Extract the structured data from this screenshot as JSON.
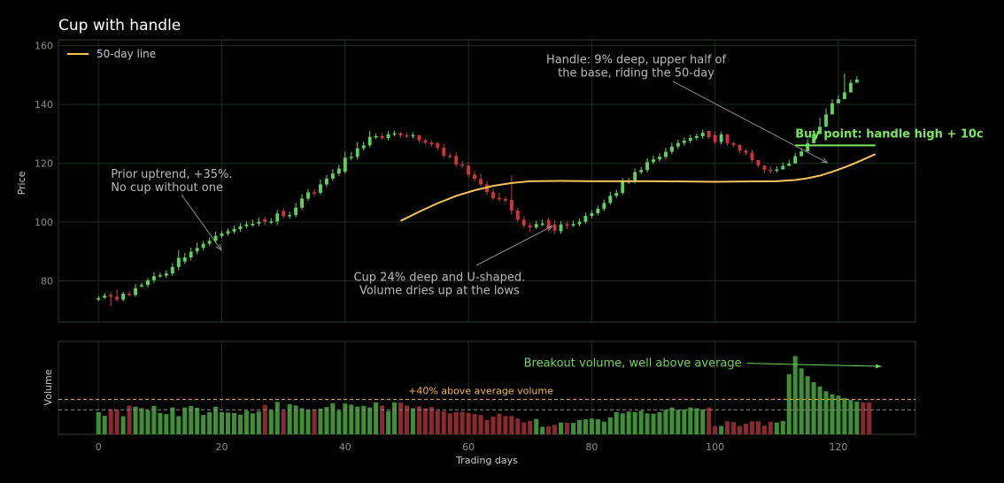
{
  "chart_data": [
    {
      "type": "candlestick",
      "title": "Cup with handle",
      "xlabel": "",
      "ylabel": "Price",
      "xlim": [
        -6.5,
        132.5
      ],
      "ylim": [
        66,
        162
      ],
      "xticks": [
        0,
        20,
        40,
        60,
        80,
        100,
        120
      ],
      "yticks": [
        80,
        100,
        120,
        140,
        160
      ],
      "grid": true,
      "legend_position": "top-left",
      "colors": {
        "up": "#5fd35f",
        "down": "#d2343e",
        "ma": "#f7c35b",
        "buy": "#7be85c",
        "annotation": "#b9b9b9",
        "arrow": "#8a8a8a"
      },
      "ohlc_close": [
        74.1,
        75.0,
        74.6,
        73.6,
        75.6,
        75.2,
        77.5,
        78.6,
        80.2,
        81.6,
        81.9,
        82.5,
        84.7,
        87.8,
        88.0,
        89.9,
        91.2,
        92.6,
        93.6,
        95.3,
        96.1,
        96.9,
        97.6,
        98.6,
        99.2,
        99.4,
        100.1,
        100.1,
        100.2,
        102.9,
        102.0,
        102.4,
        104.9,
        108.0,
        110.1,
        110.0,
        112.8,
        114.8,
        116.5,
        118.2,
        121.9,
        122.2,
        125.1,
        126.1,
        129.0,
        129.2,
        128.6,
        129.9,
        130.2,
        129.5,
        129.2,
        129.6,
        127.8,
        127.0,
        126.4,
        125.3,
        122.6,
        122.5,
        119.6,
        119.2,
        116.1,
        114.7,
        112.8,
        110.2,
        108.2,
        107.8,
        107.5,
        103.9,
        100.8,
        98.9,
        98.2,
        99.3,
        99.5,
        97.9,
        97.1,
        99.2,
        99.1,
        99.3,
        100.1,
        102.1,
        103.0,
        104.5,
        106.5,
        108.9,
        109.9,
        113.8,
        113.9,
        117.0,
        117.7,
        120.4,
        121.3,
        122.2,
        123.9,
        125.7,
        126.9,
        127.7,
        128.6,
        129.2,
        130.4,
        128.9,
        127.2,
        129.8,
        126.8,
        126.3,
        124.3,
        123.6,
        121.1,
        119.2,
        117.8,
        117.7,
        117.9,
        119.1,
        119.9,
        122.4,
        124.0,
        126.8,
        129.9,
        132.4,
        136.6,
        140.4,
        141.8,
        144.1,
        147.4,
        148.5
      ],
      "ohlc_open": [
        73.6,
        74.3,
        75.2,
        74.6,
        73.6,
        75.6,
        75.2,
        78.2,
        78.6,
        80.2,
        81.6,
        81.8,
        82.5,
        84.7,
        86.5,
        88.0,
        90.0,
        91.2,
        92.6,
        93.6,
        95.3,
        96.1,
        96.8,
        97.6,
        98.6,
        99.2,
        99.5,
        101.0,
        100.1,
        100.2,
        103.8,
        102.0,
        102.4,
        104.9,
        108.0,
        110.1,
        110.0,
        112.8,
        114.8,
        116.5,
        117.2,
        121.9,
        122.2,
        125.1,
        126.1,
        129.1,
        129.2,
        128.6,
        129.9,
        130.2,
        129.5,
        129.2,
        129.6,
        127.8,
        127.0,
        126.8,
        125.3,
        122.6,
        122.5,
        119.6,
        119.2,
        116.1,
        114.7,
        112.8,
        110.2,
        108.2,
        107.8,
        107.5,
        103.9,
        100.8,
        98.9,
        98.2,
        99.3,
        100.7,
        99.2,
        96.9,
        99.2,
        99.1,
        99.3,
        100.1,
        102.1,
        103.0,
        104.5,
        106.5,
        108.9,
        109.9,
        113.8,
        113.9,
        117.0,
        117.7,
        120.4,
        121.3,
        122.2,
        123.9,
        125.7,
        126.9,
        127.7,
        128.6,
        129.2,
        131.0,
        129.6,
        127.2,
        129.8,
        126.8,
        126.3,
        124.3,
        123.6,
        121.1,
        119.2,
        117.8,
        117.7,
        117.9,
        119.1,
        119.9,
        122.4,
        124.0,
        126.8,
        129.9,
        132.4,
        136.6,
        140.4,
        141.8,
        144.1,
        147.4
      ],
      "ohlc_high": [
        74.9,
        75.9,
        76.0,
        77.0,
        76.3,
        76.6,
        78.9,
        79.4,
        81.0,
        83.0,
        82.8,
        83.6,
        86.0,
        90.5,
        89.5,
        91.3,
        93.0,
        93.6,
        94.8,
        96.7,
        97.1,
        97.8,
        98.8,
        99.6,
        100.3,
        100.8,
        101.6,
        101.9,
        101.3,
        104.1,
        104.6,
        103.5,
        106.5,
        109.5,
        111.2,
        111.3,
        114.5,
        116.0,
        118.0,
        119.5,
        124.0,
        123.9,
        127.3,
        127.4,
        131.0,
        130.2,
        130.2,
        131.0,
        131.1,
        130.6,
        130.2,
        130.6,
        129.0,
        128.3,
        127.8,
        127.3,
        126.5,
        123.6,
        123.7,
        120.8,
        120.4,
        117.4,
        116.5,
        114.0,
        111.4,
        110.1,
        108.6,
        116.0,
        104.8,
        102.0,
        99.8,
        100.5,
        100.8,
        101.6,
        100.5,
        100.3,
        100.2,
        100.4,
        101.1,
        103.2,
        104.1,
        105.6,
        107.6,
        110.3,
        111.0,
        115.0,
        115.1,
        118.2,
        118.8,
        121.7,
        122.6,
        123.4,
        125.2,
        127.0,
        128.0,
        128.8,
        129.7,
        130.1,
        131.5,
        130.4,
        130.8,
        130.7,
        130.0,
        127.4,
        125.3,
        124.8,
        124.4,
        120.6,
        119.0,
        119.0,
        119.0,
        120.3,
        121.2,
        123.6,
        125.2,
        128.2,
        131.3,
        135.5,
        138.7,
        141.8,
        143.2,
        150.5,
        148.5,
        149.6
      ],
      "ohlc_low": [
        73.1,
        73.8,
        71.5,
        73.0,
        73.1,
        74.8,
        74.6,
        77.7,
        77.8,
        79.3,
        81.0,
        81.0,
        81.7,
        83.6,
        85.7,
        87.0,
        89.0,
        90.4,
        91.9,
        92.8,
        94.5,
        95.3,
        96.0,
        96.7,
        97.8,
        98.4,
        98.6,
        99.0,
        99.4,
        99.0,
        101.2,
        101.1,
        101.7,
        104.1,
        107.2,
        108.7,
        109.2,
        112.0,
        114.0,
        115.7,
        116.5,
        121.1,
        121.2,
        124.3,
        125.4,
        128.3,
        128.0,
        127.8,
        129.1,
        128.8,
        128.7,
        128.4,
        127.0,
        126.3,
        125.6,
        124.5,
        121.8,
        121.7,
        118.8,
        118.4,
        115.3,
        113.9,
        112.0,
        109.4,
        107.4,
        107.0,
        106.8,
        102.5,
        100.0,
        98.0,
        96.7,
        97.6,
        98.5,
        97.0,
        96.0,
        96.0,
        97.6,
        98.3,
        98.5,
        99.4,
        101.3,
        102.3,
        103.7,
        105.8,
        108.2,
        109.2,
        113.0,
        113.1,
        116.2,
        116.8,
        119.6,
        120.5,
        121.4,
        123.1,
        124.8,
        126.0,
        126.9,
        127.8,
        128.4,
        128.3,
        126.4,
        126.5,
        126.0,
        125.5,
        123.5,
        122.8,
        120.3,
        118.5,
        116.6,
        116.5,
        116.9,
        118.4,
        119.2,
        121.7,
        123.3,
        126.1,
        129.2,
        131.7,
        135.9,
        139.7,
        141.1,
        143.4,
        146.7,
        147.8
      ],
      "ma_series": {
        "name": "50-day line",
        "x": [
          49,
          52,
          55,
          58,
          61,
          64,
          67,
          70,
          75,
          80,
          85,
          90,
          95,
          100,
          105,
          110,
          113,
          115,
          117,
          119,
          121,
          123,
          126
        ],
        "values": [
          100.4,
          103.5,
          106.4,
          108.9,
          110.8,
          112.3,
          113.3,
          113.9,
          114.0,
          113.9,
          113.9,
          113.9,
          113.8,
          113.7,
          113.8,
          113.9,
          114.3,
          114.9,
          115.8,
          117.1,
          118.6,
          120.3,
          123.1
        ]
      },
      "annotations": [
        {
          "text": "Prior uptrend, +35%.",
          "text2": "No cup without one",
          "tx": 2,
          "ty": 115,
          "ax": 19.9,
          "ay": 90.5
        },
        {
          "text": "Cup 24% deep and U-shaped.",
          "text2": "Volume dries up at the lows",
          "tx": 55.3,
          "ty": 80,
          "ax": 73.6,
          "ay": 98.6
        },
        {
          "text": "Handle: 9% deep, upper half of",
          "text2": "the base, riding the 50-day",
          "tx": 87.2,
          "ty": 154,
          "ax": 118.2,
          "ay": 120.2
        }
      ],
      "buy_point": {
        "label": "Buy point: handle high + 10c",
        "value": 130.0,
        "x_start": 113,
        "x_end": 126
      }
    },
    {
      "type": "bar",
      "xlabel": "Trading days",
      "ylabel": "Volume",
      "xlim": [
        -6.5,
        132.5
      ],
      "ylim": [
        0,
        2.35
      ],
      "xticks": [
        0,
        20,
        40,
        60,
        80,
        100,
        120
      ],
      "colors": {
        "up": "#3f8f36",
        "down": "#8b2a2e",
        "average": "#8a8a8a",
        "threshold": "#f0b74a",
        "annotation": "#72d45a"
      },
      "average_volume": 0.62,
      "threshold_volume": 0.88,
      "threshold_label": "+40% above average volume",
      "annotation": {
        "text": "Breakout volume, well above average",
        "tx": 100,
        "ty": 1.82,
        "ax": 127,
        "ay": 1.72
      },
      "values": [
        0.56,
        0.47,
        0.63,
        0.62,
        0.46,
        0.73,
        0.7,
        0.66,
        0.61,
        0.72,
        0.54,
        0.51,
        0.68,
        0.46,
        0.68,
        0.72,
        0.67,
        0.49,
        0.56,
        0.7,
        0.56,
        0.55,
        0.54,
        0.5,
        0.6,
        0.53,
        0.58,
        0.75,
        0.61,
        0.82,
        0.6,
        0.76,
        0.73,
        0.66,
        0.62,
        0.63,
        0.65,
        0.69,
        0.79,
        0.6,
        0.78,
        0.75,
        0.7,
        0.72,
        0.68,
        0.81,
        0.73,
        0.59,
        0.81,
        0.8,
        0.73,
        0.66,
        0.71,
        0.66,
        0.69,
        0.6,
        0.59,
        0.53,
        0.56,
        0.57,
        0.54,
        0.51,
        0.49,
        0.36,
        0.45,
        0.52,
        0.46,
        0.46,
        0.4,
        0.3,
        0.34,
        0.39,
        0.19,
        0.2,
        0.24,
        0.3,
        0.29,
        0.29,
        0.36,
        0.38,
        0.4,
        0.38,
        0.32,
        0.43,
        0.56,
        0.53,
        0.58,
        0.56,
        0.6,
        0.53,
        0.52,
        0.56,
        0.62,
        0.68,
        0.62,
        0.63,
        0.68,
        0.66,
        0.63,
        0.68,
        0.21,
        0.21,
        0.33,
        0.31,
        0.21,
        0.27,
        0.33,
        0.33,
        0.22,
        0.32,
        0.3,
        0.34,
        1.52,
        1.98,
        1.67,
        1.47,
        1.32,
        1.21,
        1.09,
        1.01,
        0.98,
        0.92,
        0.87,
        0.83,
        0.81,
        0.81
      ]
    }
  ]
}
